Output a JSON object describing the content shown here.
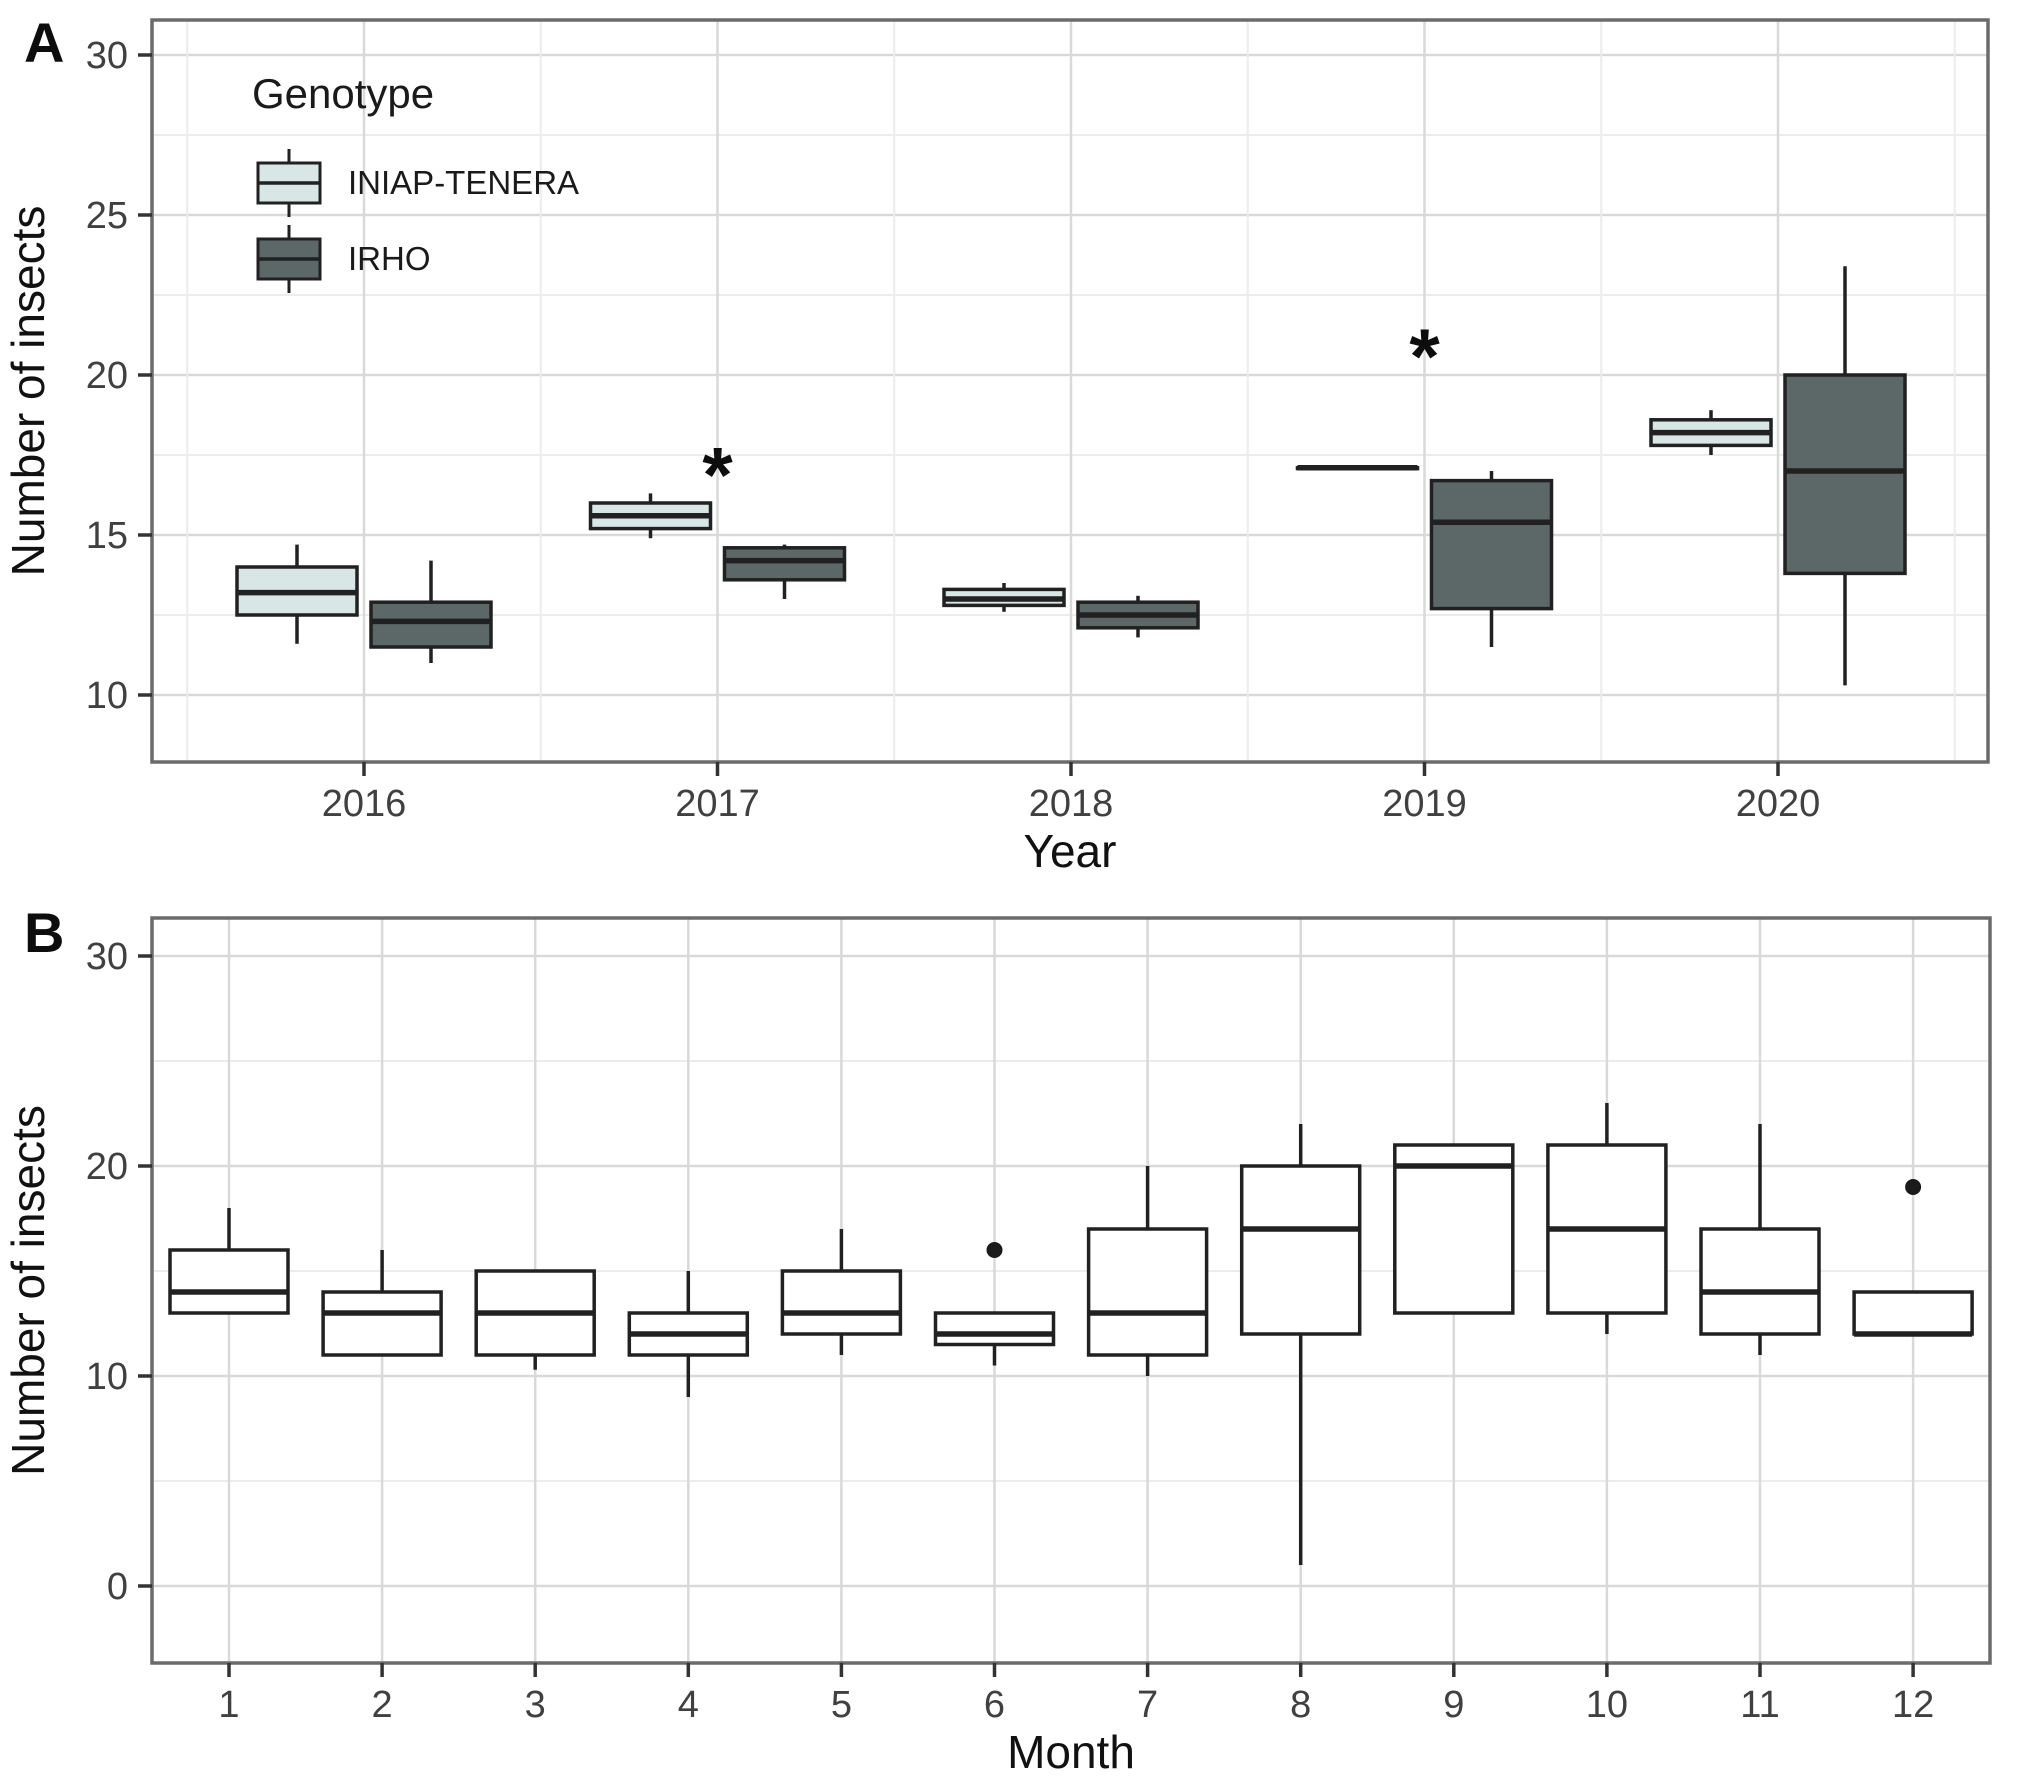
{
  "figure": {
    "background": "#ffffff",
    "panel_border_color": "#6b6b6b",
    "grid_major_color": "#d9d9d9",
    "grid_minor_color": "#ececec",
    "box_stroke_color": "#212121",
    "tick_color": "#333333",
    "tick_label_color": "#404040",
    "axis_title_color": "#111111",
    "outlier_color": "#1a1a1a"
  },
  "panels": [
    {
      "label": "A"
    },
    {
      "label": "B"
    }
  ],
  "chart_data": [
    {
      "panel": "A",
      "type": "boxplot",
      "grouped": true,
      "xlabel": "Year",
      "ylabel": "Number of insects",
      "y_ticks": [
        10,
        15,
        20,
        25,
        30
      ],
      "y_minor": [
        12.5,
        17.5,
        22.5,
        27.5
      ],
      "ylim": [
        7.9,
        31.1
      ],
      "categories": [
        "2016",
        "2017",
        "2018",
        "2019",
        "2020"
      ],
      "legend": {
        "title": "Genotype",
        "entries": [
          "INIAP-TENERA",
          "IRHO"
        ],
        "position": "top-left-inside"
      },
      "series": [
        {
          "name": "INIAP-TENERA",
          "fill": "#d8e6e5",
          "boxes": [
            {
              "min": 11.6,
              "q1": 12.5,
              "median": 13.2,
              "q3": 14.0,
              "max": 14.7
            },
            {
              "min": 14.9,
              "q1": 15.2,
              "median": 15.6,
              "q3": 16.0,
              "max": 16.3
            },
            {
              "min": 12.6,
              "q1": 12.8,
              "median": 13.0,
              "q3": 13.3,
              "max": 13.5
            },
            {
              "min": 17.1,
              "q1": 17.1,
              "median": 17.1,
              "q3": 17.1,
              "max": 17.1
            },
            {
              "min": 17.5,
              "q1": 17.8,
              "median": 18.2,
              "q3": 18.6,
              "max": 18.9
            }
          ]
        },
        {
          "name": "IRHO",
          "fill": "#5c6767",
          "boxes": [
            {
              "min": 11.0,
              "q1": 11.5,
              "median": 12.3,
              "q3": 12.9,
              "max": 14.2
            },
            {
              "min": 13.0,
              "q1": 13.6,
              "median": 14.2,
              "q3": 14.6,
              "max": 14.7
            },
            {
              "min": 11.8,
              "q1": 12.1,
              "median": 12.5,
              "q3": 12.9,
              "max": 13.1
            },
            {
              "min": 11.5,
              "q1": 12.7,
              "median": 15.4,
              "q3": 16.7,
              "max": 17.0
            },
            {
              "min": 10.3,
              "q1": 13.8,
              "median": 17.0,
              "q3": 20.0,
              "max": 23.4
            }
          ]
        }
      ],
      "annotations": [
        {
          "text": "*",
          "category": "2017",
          "value": 16.8
        },
        {
          "text": "*",
          "category": "2019",
          "value": 20.5
        }
      ]
    },
    {
      "panel": "B",
      "type": "boxplot",
      "grouped": false,
      "xlabel": "Month",
      "ylabel": "Number of insects",
      "y_ticks": [
        0,
        10,
        20,
        30
      ],
      "y_minor": [
        5,
        15,
        25
      ],
      "ylim": [
        -3.7,
        31.8
      ],
      "categories": [
        "1",
        "2",
        "3",
        "4",
        "5",
        "6",
        "7",
        "8",
        "9",
        "10",
        "11",
        "12"
      ],
      "boxes": [
        {
          "min": 13,
          "q1": 13,
          "median": 14,
          "q3": 16,
          "max": 18,
          "outliers": []
        },
        {
          "min": 11,
          "q1": 11,
          "median": 13,
          "q3": 14,
          "max": 16,
          "outliers": []
        },
        {
          "min": 10.3,
          "q1": 11,
          "median": 13,
          "q3": 15,
          "max": 15,
          "outliers": []
        },
        {
          "min": 9,
          "q1": 11,
          "median": 12,
          "q3": 13,
          "max": 15,
          "outliers": []
        },
        {
          "min": 11,
          "q1": 12,
          "median": 13,
          "q3": 15,
          "max": 17,
          "outliers": []
        },
        {
          "min": 10.5,
          "q1": 11.5,
          "median": 12,
          "q3": 13,
          "max": 13,
          "outliers": [
            16
          ]
        },
        {
          "min": 10,
          "q1": 11,
          "median": 13,
          "q3": 17,
          "max": 20,
          "outliers": []
        },
        {
          "min": 1,
          "q1": 12,
          "median": 17,
          "q3": 20,
          "max": 22,
          "outliers": []
        },
        {
          "min": 13,
          "q1": 13,
          "median": 20,
          "q3": 21,
          "max": 21,
          "outliers": []
        },
        {
          "min": 12,
          "q1": 13,
          "median": 17,
          "q3": 21,
          "max": 23,
          "outliers": []
        },
        {
          "min": 11,
          "q1": 12,
          "median": 14,
          "q3": 17,
          "max": 22,
          "outliers": []
        },
        {
          "min": 12,
          "q1": 12,
          "median": 12,
          "q3": 14,
          "max": 14,
          "outliers": [
            19
          ]
        }
      ]
    }
  ]
}
